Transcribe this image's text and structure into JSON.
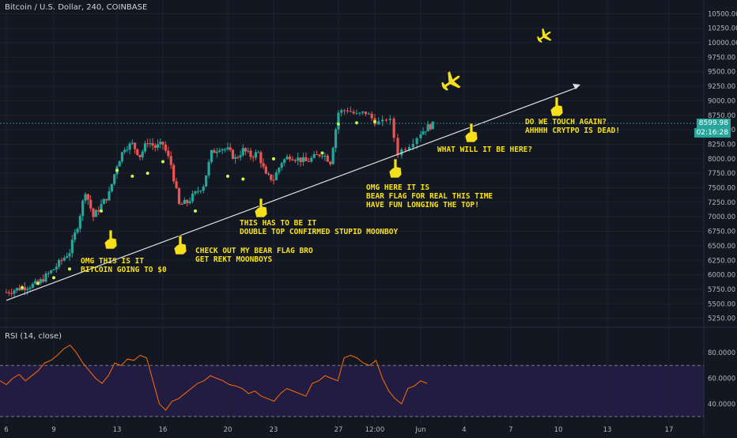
{
  "header": {
    "title": "Bitcoin / U.S. Dollar, 240, COINBASE"
  },
  "rsi": {
    "title": "RSI (14, close)",
    "ticks": [
      "80.0000",
      "60.0000",
      "40.0000"
    ]
  },
  "price_badge": {
    "price": "8599.98",
    "countdown": "02:16:28"
  },
  "annotations": [
    {
      "text": "OMG THIS IS IT\nBITCOIN GOING TO $0"
    },
    {
      "text": "CHECK OUT MY BEAR FLAG BRO\nGET REKT MOONBOYS"
    },
    {
      "text": "THIS HAS TO BE IT\nDOUBLE TOP CONFIRMED STUPID MOONBOY"
    },
    {
      "text": "OMG HERE IT IS\nBEAR FLAG FOR REAL THIS TIME\nHAVE FUN LONGING THE TOP!"
    },
    {
      "text": "WHAT WILL IT BE HERE?"
    },
    {
      "text": "DO WE TOUCH AGAIN?\nAHHHH CRYTPO IS DEAD!"
    }
  ],
  "icons": [
    "pointing-hand-icon",
    "airplane-icon"
  ],
  "colors": {
    "bg": "#131722",
    "up": "#26a69a",
    "down": "#ef5350",
    "annotation": "#f5e11b",
    "rsi_line": "#ff6d00",
    "rsi_band": "#2a1f4d"
  },
  "chart_data": [
    {
      "type": "candlestick",
      "title": "Bitcoin / U.S. Dollar, 240, COINBASE",
      "y_ticks": [
        "10500.00",
        "10250.00",
        "10000.00",
        "9750.00",
        "9500.00",
        "9250.00",
        "9000.00",
        "8750.00",
        "8500.00",
        "8250.00",
        "8000.00",
        "7750.00",
        "7500.00",
        "7250.00",
        "7000.00",
        "6750.00",
        "6500.00",
        "6250.00",
        "6000.00",
        "5750.00",
        "5500.00",
        "5250.00"
      ],
      "ylim": [
        5150,
        10600
      ],
      "x_ticks": [
        "6",
        "9",
        "13",
        "16",
        "20",
        "23",
        "27",
        "12:00",
        "Jun",
        "4",
        "7",
        "10",
        "13",
        "17"
      ],
      "close_path": [
        [
          6,
          5700
        ],
        [
          7,
          5780
        ],
        [
          8,
          5850
        ],
        [
          9,
          6100
        ],
        [
          10,
          6400
        ],
        [
          10.5,
          6850
        ],
        [
          11,
          7450
        ],
        [
          11.5,
          7000
        ],
        [
          12,
          7200
        ],
        [
          12.5,
          7400
        ],
        [
          13,
          7900
        ],
        [
          13.5,
          8200
        ],
        [
          14,
          8250
        ],
        [
          14.5,
          8050
        ],
        [
          15,
          8300
        ],
        [
          15.5,
          8200
        ],
        [
          16,
          8250
        ],
        [
          16.5,
          7900
        ],
        [
          17,
          7200
        ],
        [
          17.5,
          7250
        ],
        [
          18,
          7400
        ],
        [
          18.5,
          7550
        ],
        [
          19,
          8100
        ],
        [
          19.5,
          8200
        ],
        [
          20,
          8150
        ],
        [
          20.5,
          8000
        ],
        [
          21,
          8150
        ],
        [
          21.5,
          8050
        ],
        [
          22,
          8100
        ],
        [
          22.5,
          7700
        ],
        [
          23,
          7650
        ],
        [
          23.5,
          7950
        ],
        [
          24,
          8050
        ],
        [
          24.5,
          8000
        ],
        [
          25,
          7950
        ],
        [
          26,
          8100
        ],
        [
          26.5,
          7950
        ],
        [
          27,
          8800
        ],
        [
          27.5,
          8850
        ],
        [
          28,
          8750
        ],
        [
          28.5,
          8800
        ],
        [
          29,
          8650
        ],
        [
          29.3,
          8600
        ],
        [
          29.6,
          8750
        ],
        [
          30,
          8100
        ],
        [
          30.5,
          8250
        ],
        [
          31,
          8450
        ],
        [
          31.5,
          8550
        ],
        [
          32,
          8600
        ]
      ],
      "sar_dots": [
        [
          7,
          5780
        ],
        [
          8,
          5850
        ],
        [
          9,
          5950
        ],
        [
          10,
          6100
        ],
        [
          12,
          7100
        ],
        [
          13,
          7800
        ],
        [
          14,
          7700
        ],
        [
          15,
          7750
        ],
        [
          16,
          7950
        ],
        [
          18,
          7100
        ],
        [
          20,
          7700
        ],
        [
          21,
          7650
        ],
        [
          23,
          8000
        ],
        [
          26,
          8100
        ],
        [
          27,
          8600
        ],
        [
          28,
          8620
        ],
        [
          29,
          8640
        ]
      ],
      "trendline": {
        "from": [
          6,
          5560
        ],
        "to": [
          38,
          9230
        ]
      }
    },
    {
      "type": "line",
      "title": "RSI (14, close)",
      "ylim": [
        25,
        90
      ],
      "y_ticks": [
        "80.0000",
        "60.0000",
        "40.0000"
      ],
      "bands": {
        "upper": 70,
        "lower": 30
      },
      "values": [
        58,
        55,
        60,
        63,
        58,
        62,
        66,
        72,
        74,
        78,
        83,
        86,
        80,
        72,
        66,
        60,
        56,
        62,
        72,
        70,
        75,
        74,
        78,
        76,
        58,
        40,
        35,
        42,
        44,
        48,
        52,
        56,
        58,
        62,
        60,
        58,
        55,
        54,
        52,
        48,
        50,
        46,
        44,
        42,
        48,
        52,
        50,
        48,
        46,
        56,
        58,
        62,
        60,
        58,
        76,
        78,
        76,
        72,
        70,
        74,
        60,
        50,
        44,
        40,
        52,
        54,
        58,
        56
      ]
    }
  ]
}
